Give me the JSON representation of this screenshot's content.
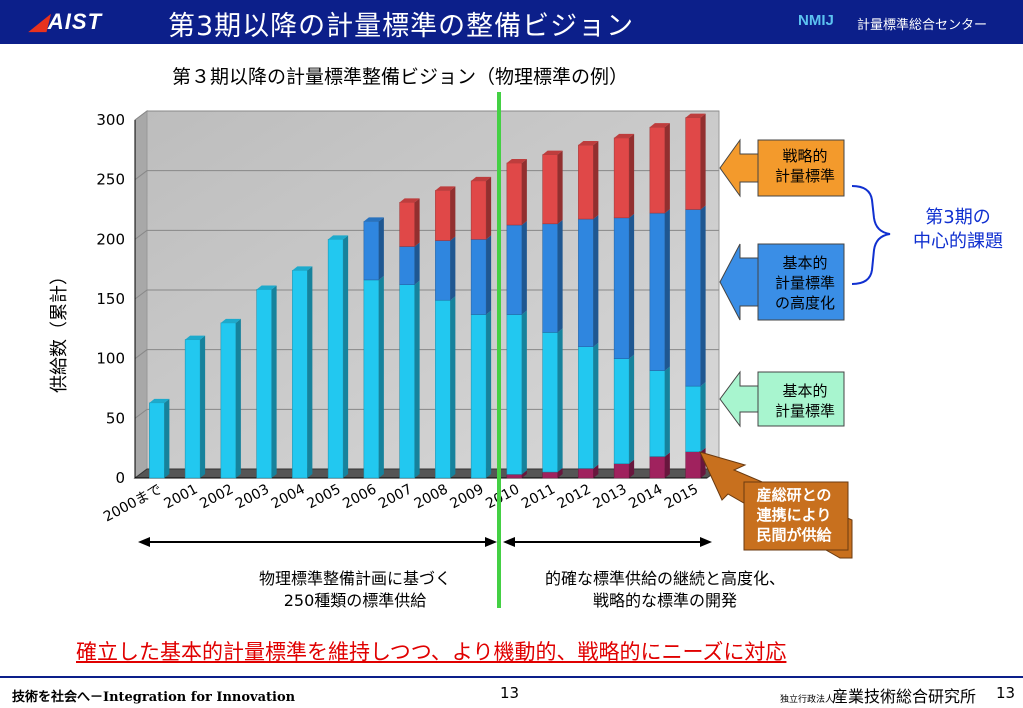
{
  "header": {
    "logo": "AIST",
    "title": "第3期以降の計量標準の整備ビジョン",
    "right_logo": "NMIJ",
    "right_text": "計量標準総合センター"
  },
  "chart_title": "第３期以降の計量標準整備ビジョン（物理標準の例）",
  "colors": {
    "header_bg": "#0c1f8a",
    "basic": "#22c8f0",
    "advanced": "#2f86df",
    "strategic": "#e04848",
    "private": "#a0225e",
    "callout_orange": "#f39a2c",
    "callout_blue": "#3a8ee6",
    "callout_green": "#a8f5cf",
    "callout_brown": "#c8701e",
    "divider": "#44d044"
  },
  "chart_data": {
    "type": "bar",
    "stacked": true,
    "ylabel": "供給数（累計）",
    "ylim": [
      0,
      300
    ],
    "yticks": [
      "0",
      "50",
      "100",
      "150",
      "200",
      "250",
      "300"
    ],
    "categories": [
      "2000まで",
      "2001",
      "2002",
      "2003",
      "2004",
      "2005",
      "2006",
      "2007",
      "2008",
      "2009",
      "2010",
      "2011",
      "2012",
      "2013",
      "2014",
      "2015"
    ],
    "series": [
      {
        "color": "#a0225e",
        "values": [
          0,
          0,
          0,
          0,
          0,
          0,
          0,
          0,
          0,
          0,
          3,
          5,
          8,
          12,
          18,
          22
        ]
      },
      {
        "color": "#22c8f0",
        "values": [
          63,
          116,
          130,
          158,
          174,
          200,
          166,
          162,
          149,
          137,
          134,
          117,
          102,
          88,
          72,
          55
        ]
      },
      {
        "color": "#2f86df",
        "values": [
          0,
          0,
          0,
          0,
          0,
          0,
          49,
          32,
          50,
          63,
          75,
          91,
          107,
          118,
          132,
          148
        ]
      },
      {
        "color": "#e04848",
        "values": [
          0,
          0,
          0,
          0,
          0,
          0,
          0,
          37,
          42,
          49,
          52,
          58,
          62,
          67,
          72,
          77
        ]
      }
    ]
  },
  "callouts": {
    "strategic": [
      "戦略的",
      "計量標準"
    ],
    "advanced": [
      "基本的",
      "計量標準",
      "の高度化"
    ],
    "basic": [
      "基本的",
      "計量標準"
    ],
    "private": [
      "産総研との",
      "連携により",
      "民間が供給"
    ],
    "period3": [
      "第3期の",
      "中心的課題"
    ]
  },
  "ranges": {
    "left": [
      "物理標準整備計画に基づく",
      "250種類の標準供給"
    ],
    "right": [
      "的確な標準供給の継続と高度化、",
      "戦略的な標準の開発"
    ]
  },
  "conclusion": "確立した基本的計量標準を維持しつつ、より機動的、戦略的にニーズに対応",
  "footer": {
    "left": "技術を社会へ－Integration for Innovation",
    "page": "13",
    "right_small": "独立行政法人",
    "right": "産業技術総合研究所",
    "right_page": "13"
  }
}
